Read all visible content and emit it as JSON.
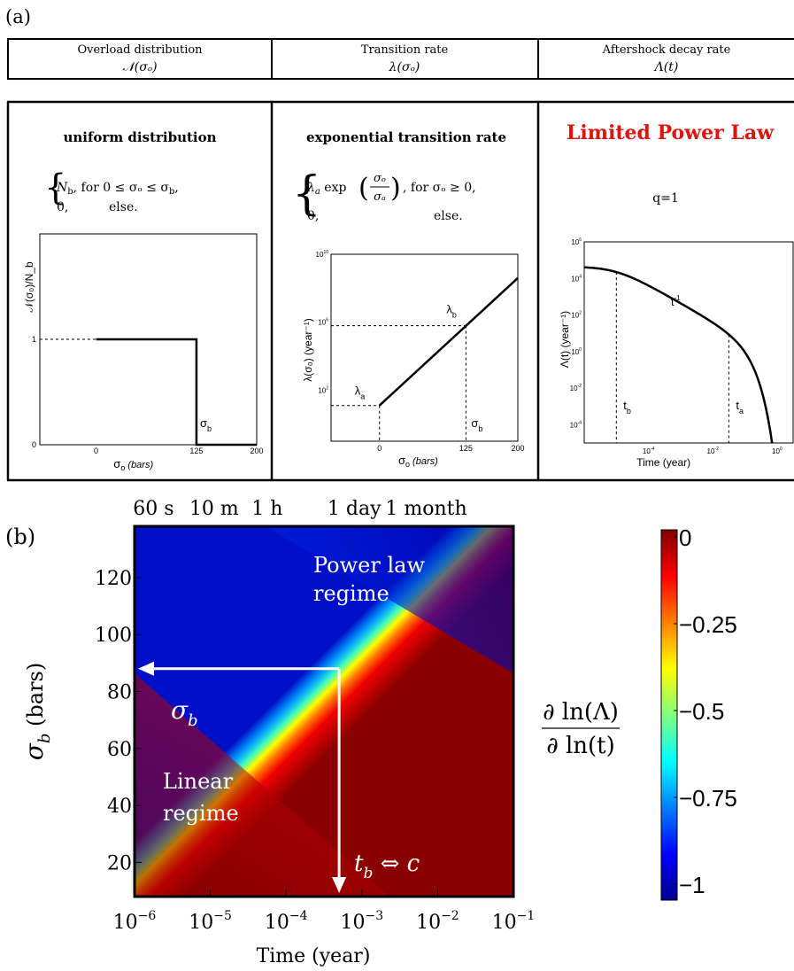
{
  "panel_a_label": "(a)",
  "panel_b_label": "(b)",
  "header": [
    {
      "title": "Overload distribution",
      "symbol": "𝒩(σₒ)"
    },
    {
      "title": "Transition rate",
      "symbol": "λ(σₒ)"
    },
    {
      "title": "Aftershock decay rate",
      "symbol": "Λ(t)"
    }
  ],
  "col1": {
    "heading": "uniform distribution",
    "eq_line1_a": "N",
    "eq_line1_b": "b",
    "eq_line1_c": ",   for 0 ≤ σₒ ≤ σ",
    "eq_line1_d": "b",
    "eq_line1_e": ",",
    "eq_line2_a": "0,",
    "eq_line2_b": "else."
  },
  "col2": {
    "heading": "exponential transition rate",
    "eq_line1_a": "λ",
    "eq_line1_b": "a",
    "eq_line1_c": " exp",
    "eq_frac_num": "σₒ",
    "eq_frac_den": "σₐ",
    "eq_line1_d": ",   for σₒ ≥ 0,",
    "eq_line2_a": "0,",
    "eq_line2_b": "else."
  },
  "col3": {
    "heading": "Limited Power Law",
    "sub": "q=1",
    "heading_color": "#e0140f"
  },
  "chart_data": [
    {
      "type": "line",
      "panel": "a1",
      "ylabel": "𝒩(σ₀)/N_b",
      "xlabel_sym": "σ",
      "xlabel_sub": "o",
      "xlabel_unit": "(bars)",
      "x_ticks": [
        "0",
        "125",
        "200"
      ],
      "y_ticks": [
        "0",
        "1"
      ],
      "xlim": [
        -70,
        200
      ],
      "ylim": [
        0,
        2
      ],
      "x": [
        0,
        125,
        125,
        200
      ],
      "y": [
        1,
        1,
        0,
        0
      ],
      "dashed_ref": {
        "y": 1,
        "x_from": -70,
        "x_to": 0
      },
      "annotation": {
        "sym": "σ",
        "sub": "b"
      }
    },
    {
      "type": "line",
      "panel": "a2",
      "ylabel": "λ(σ₀) (year⁻¹)",
      "xlabel_sym": "σ",
      "xlabel_sub": "o",
      "xlabel_unit": "(bars)",
      "x_ticks": [
        "0",
        "125",
        "200"
      ],
      "y_ticks": [
        {
          "base": "10",
          "exp": "2"
        },
        {
          "base": "10",
          "exp": "6"
        },
        {
          "base": "10",
          "exp": "10"
        }
      ],
      "xlim": [
        -70,
        200
      ],
      "ylim_log10": [
        -1,
        10
      ],
      "x": [
        0,
        200
      ],
      "y_log10": [
        1.1,
        8.6
      ],
      "ref_points": [
        {
          "label": "λ",
          "sub": "a",
          "x": 0,
          "y_log10": 1.1
        },
        {
          "label": "λ",
          "sub": "b",
          "x": 125,
          "y_log10": 5.8
        }
      ],
      "annotation": {
        "sym": "σ",
        "sub": "b"
      }
    },
    {
      "type": "line",
      "panel": "a3",
      "ylabel": "Λ(t) (year⁻¹)",
      "xlabel": "Time (year)",
      "x_ticks_log10": [
        -4,
        -2,
        0
      ],
      "y_ticks_log10": [
        -4,
        -2,
        0,
        2,
        4,
        6
      ],
      "xlim_log10": [
        -6,
        0.5
      ],
      "ylim_log10": [
        -5,
        6
      ],
      "slope_label": {
        "base": "t",
        "exp": "-1"
      },
      "t_b_log10": -5,
      "t_a_log10": -1.5,
      "marks": [
        {
          "base": "t",
          "sub": "b"
        },
        {
          "base": "t",
          "sub": "a"
        }
      ]
    },
    {
      "type": "heatmap",
      "panel": "b",
      "xlabel": "Time (year)",
      "ylabel_sym": "σ",
      "ylabel_sub": "b",
      "ylabel_unit": "(bars)",
      "xlim_log10": [
        -6,
        -1
      ],
      "ylim": [
        8,
        138
      ],
      "x_ticks": [
        {
          "base": "10",
          "exp": "−6"
        },
        {
          "base": "10",
          "exp": "−5"
        },
        {
          "base": "10",
          "exp": "−4"
        },
        {
          "base": "10",
          "exp": "−3"
        },
        {
          "base": "10",
          "exp": "−2"
        },
        {
          "base": "10",
          "exp": "−1"
        }
      ],
      "y_ticks": [
        20,
        40,
        60,
        80,
        100,
        120
      ],
      "top_ticks": [
        "60 s",
        "10 m",
        "1 h",
        "1 day",
        "1 month"
      ],
      "power_law_label": [
        "Power law",
        "regime"
      ],
      "linear_label": [
        "Linear",
        "regime"
      ],
      "arrow_sigma": {
        "sym": "σ",
        "sub": "b"
      },
      "arrow_time": {
        "sym": "t",
        "sub": "b",
        "rel": "⇔ c"
      },
      "arrow_point": {
        "x_log10": -3.3,
        "y": 88
      },
      "colorbar": {
        "ticks": [
          "0",
          "−0.25",
          "−0.5",
          "−0.75",
          "−1"
        ],
        "range": [
          -1,
          0
        ],
        "label_num": "∂ ln(Λ)",
        "label_den": "∂ ln(t)"
      }
    }
  ]
}
